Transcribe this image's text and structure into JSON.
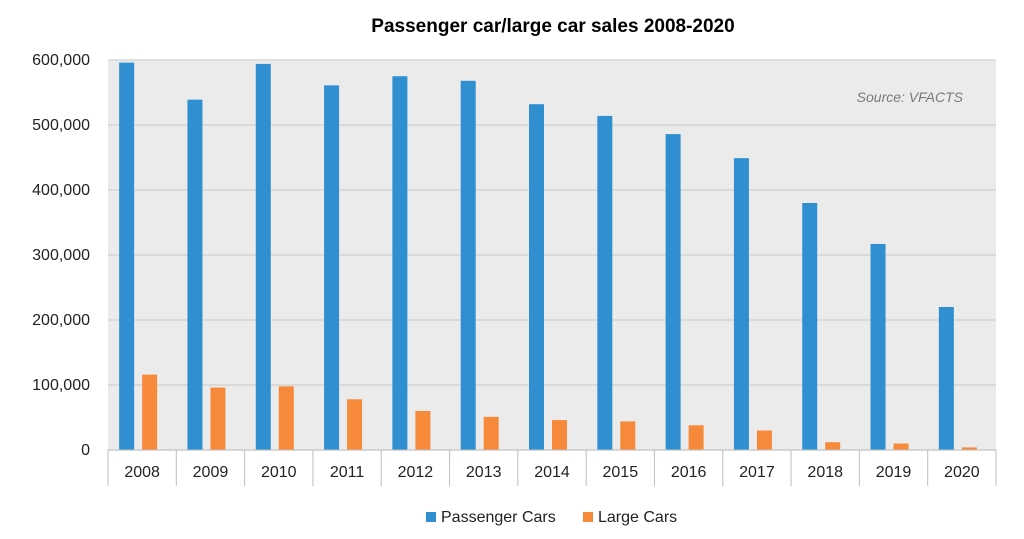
{
  "chart_data": {
    "type": "bar",
    "title": "Passenger car/large car sales 2008-2020",
    "annotation": "Source: VFACTS",
    "categories": [
      "2008",
      "2009",
      "2010",
      "2011",
      "2012",
      "2013",
      "2014",
      "2015",
      "2016",
      "2017",
      "2018",
      "2019",
      "2020"
    ],
    "series": [
      {
        "name": "Passenger Cars",
        "color": "#2f8fd0",
        "values": [
          596000,
          539000,
          594000,
          561000,
          575000,
          568000,
          532000,
          514000,
          486000,
          449000,
          380000,
          317000,
          220000
        ]
      },
      {
        "name": "Large Cars",
        "color": "#f68a3a",
        "values": [
          116000,
          96000,
          98000,
          78000,
          60000,
          51000,
          46000,
          44000,
          38000,
          30000,
          12000,
          10000,
          4000
        ]
      }
    ],
    "yticks": [
      "0",
      "100,000",
      "200,000",
      "300,000",
      "400,000",
      "500,000",
      "600,000"
    ],
    "ylim": [
      0,
      600000
    ],
    "ytick_step": 100000,
    "grid": true,
    "plot_background": "#ebebeb",
    "legend_position": "bottom"
  }
}
